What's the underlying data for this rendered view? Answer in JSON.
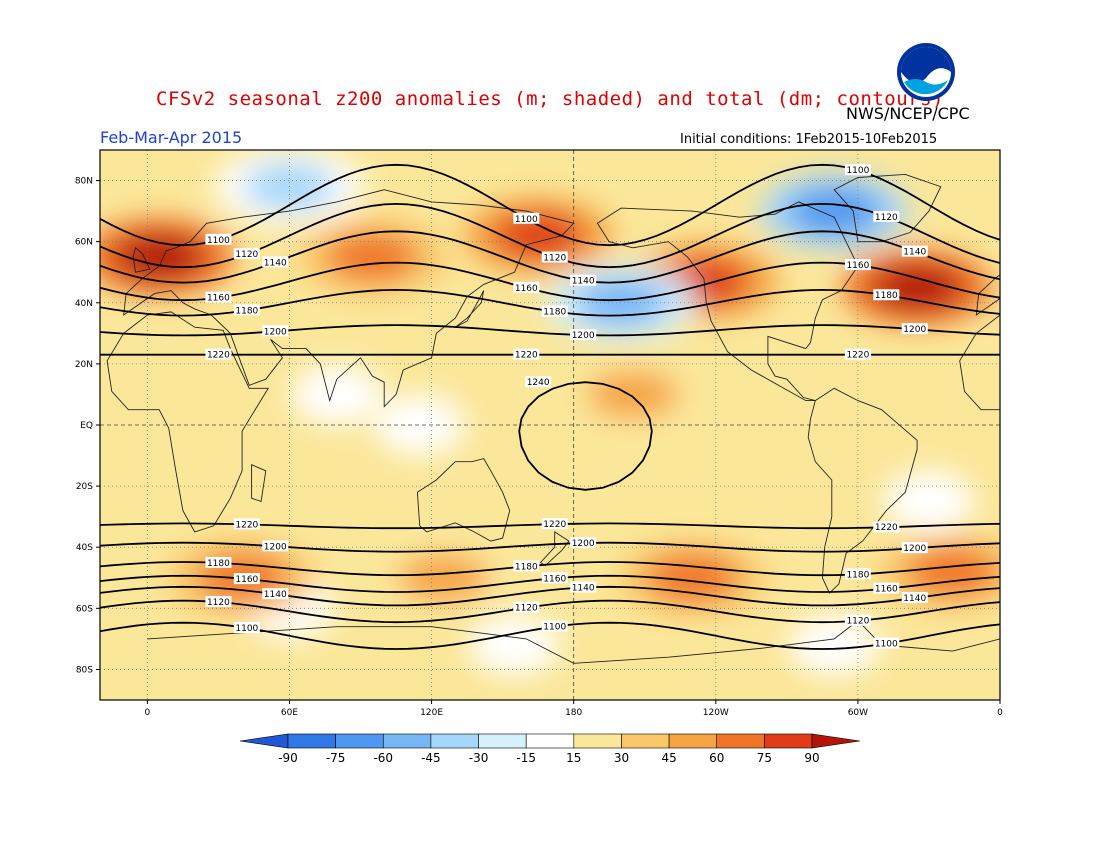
{
  "header": {
    "title": "CFSv2 seasonal z200 anomalies (m; shaded) and total (dm; contours)",
    "credit": "NWS/NCEP/CPC",
    "period": "Feb-Mar-Apr 2015",
    "initial_conditions": "Initial conditions: 1Feb2015-10Feb2015",
    "logo_text": "NOAA"
  },
  "map": {
    "lat_ticks": [
      "80N",
      "60N",
      "40N",
      "20N",
      "EQ",
      "20S",
      "40S",
      "60S",
      "80S"
    ],
    "lon_ticks": [
      "0",
      "60E",
      "120E",
      "180",
      "120W",
      "60W",
      "0"
    ],
    "contours": [
      {
        "value": "1100",
        "lat": 72
      },
      {
        "value": "1120",
        "lat": 62
      },
      {
        "value": "1140",
        "lat": 55
      },
      {
        "value": "1160",
        "lat": 47
      },
      {
        "value": "1180",
        "lat": 40
      },
      {
        "value": "1200",
        "lat": 31
      },
      {
        "value": "1220",
        "lat": 23
      },
      {
        "value": "1220",
        "lat": -33
      },
      {
        "value": "1200",
        "lat": -40
      },
      {
        "value": "1180",
        "lat": -47
      },
      {
        "value": "1160",
        "lat": -52
      },
      {
        "value": "1140",
        "lat": -56
      },
      {
        "value": "1120",
        "lat": -61
      },
      {
        "value": "1100",
        "lat": -69
      }
    ],
    "closed_contour": {
      "value": "1240"
    },
    "anomaly_blobs": [
      {
        "lon": 5,
        "lat": 55,
        "value": 90
      },
      {
        "lon": 95,
        "lat": 55,
        "value": 60
      },
      {
        "lon": 165,
        "lat": 62,
        "value": 75
      },
      {
        "lon": 235,
        "lat": 47,
        "value": 75
      },
      {
        "lon": 325,
        "lat": 45,
        "value": 90
      },
      {
        "lon": 200,
        "lat": 40,
        "value": -60
      },
      {
        "lon": 290,
        "lat": 70,
        "value": -75
      },
      {
        "lon": 60,
        "lat": 78,
        "value": -45
      },
      {
        "lon": 40,
        "lat": -50,
        "value": 60
      },
      {
        "lon": 125,
        "lat": -50,
        "value": 45
      },
      {
        "lon": 230,
        "lat": -50,
        "value": 60
      },
      {
        "lon": 340,
        "lat": -48,
        "value": 60
      },
      {
        "lon": 205,
        "lat": 10,
        "value": 45
      }
    ]
  },
  "colorbar": {
    "ticks": [
      "-90",
      "-75",
      "-60",
      "-45",
      "-30",
      "-15",
      "15",
      "30",
      "45",
      "60",
      "75",
      "90"
    ],
    "colors": [
      "#1f58d6",
      "#2f78e6",
      "#4f98ef",
      "#76b6f5",
      "#a6d7fa",
      "#d4f1fc",
      "#ffffff",
      "#fbe79a",
      "#f9c76a",
      "#f6a443",
      "#f07427",
      "#e03c19",
      "#b41408"
    ]
  }
}
